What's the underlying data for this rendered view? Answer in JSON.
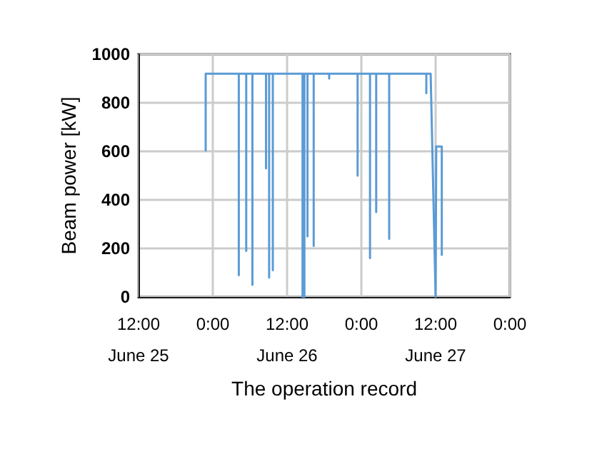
{
  "chart_data": {
    "type": "line",
    "xlabel": "The operation record",
    "ylabel": "Beam power [kW]",
    "color": "#5b9bd5",
    "x": [
      "--06-25T22:51",
      "--06-25T22:51",
      "--06-26T04:12",
      "--06-26T04:12",
      "--06-26T04:12",
      "--06-26T05:24",
      "--06-26T05:24",
      "--06-26T05:24",
      "--06-26T06:24",
      "--06-26T06:24",
      "--06-26T06:24",
      "--06-26T08:36",
      "--06-26T08:36",
      "--06-26T08:36",
      "--06-26T09:06",
      "--06-26T09:06",
      "--06-26T09:06",
      "--06-26T09:42",
      "--06-26T09:42",
      "--06-26T09:42",
      "--06-26T14:30",
      "--06-26T14:30",
      "--06-26T14:30",
      "--06-26T14:48",
      "--06-26T14:48",
      "--06-26T14:48",
      "--06-26T15:18",
      "--06-26T15:18",
      "--06-26T15:18",
      "--06-26T16:18",
      "--06-26T16:18",
      "--06-26T16:18",
      "--06-26T18:48",
      "--06-26T18:48",
      "--06-26T18:48",
      "--06-26T23:24",
      "--06-26T23:24",
      "--06-26T23:24",
      "--06-27T01:24",
      "--06-27T01:24",
      "--06-27T01:24",
      "--06-27T02:24",
      "--06-27T02:24",
      "--06-27T02:24",
      "--06-27T04:30",
      "--06-27T04:30",
      "--06-27T04:30",
      "--06-27T10:30",
      "--06-27T10:30",
      "--06-27T10:30",
      "--06-27T11:12",
      "--06-27T12:00",
      "--06-27T12:06",
      "--06-27T13:00",
      "--06-27T13:00"
    ],
    "values": [
      600,
      920,
      920,
      90,
      920,
      920,
      190,
      920,
      920,
      50,
      920,
      920,
      530,
      920,
      920,
      80,
      920,
      920,
      110,
      920,
      920,
      0,
      920,
      920,
      0,
      920,
      920,
      250,
      920,
      920,
      210,
      920,
      920,
      900,
      920,
      920,
      500,
      920,
      920,
      160,
      920,
      920,
      350,
      920,
      920,
      240,
      920,
      920,
      840,
      920,
      920,
      0,
      620,
      620,
      170
    ],
    "xlim": [
      "--06-25T12:00",
      "--06-28T00:00"
    ],
    "xticks": [
      {
        "value": "--06-25T12:00",
        "label": "12:00\nJune 25"
      },
      {
        "value": "--06-26T00:00",
        "label": "0:00"
      },
      {
        "value": "--06-26T12:00",
        "label": "12:00\nJune 26"
      },
      {
        "value": "--06-27T00:00",
        "label": "0:00"
      },
      {
        "value": "--06-27T12:00",
        "label": "12:00\nJune 27"
      },
      {
        "value": "--06-28T00:00",
        "label": "0:00"
      }
    ],
    "ylim": [
      0,
      1000
    ],
    "yticks": [
      0,
      200,
      400,
      600,
      800,
      1000
    ],
    "grid": true,
    "marker": "none",
    "line_style": "solid"
  }
}
